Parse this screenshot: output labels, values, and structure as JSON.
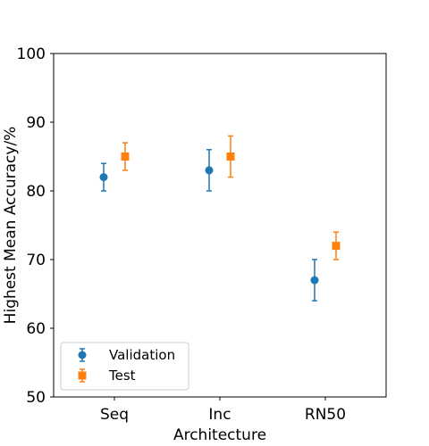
{
  "chart_data": {
    "type": "scatter",
    "title": "",
    "xlabel": "Architecture",
    "ylabel": "Highest Mean Accuracy/%",
    "categories": [
      "Seq",
      "Inc",
      "RN50"
    ],
    "ylim": [
      50,
      100
    ],
    "yticks": [
      50,
      60,
      70,
      80,
      90,
      100
    ],
    "grid": false,
    "legend_position": "lower-left",
    "series": [
      {
        "name": "Validation",
        "marker": "circle",
        "color": "#1f77b4",
        "values": [
          82,
          83,
          67
        ],
        "err_low": [
          80,
          80,
          64
        ],
        "err_high": [
          84,
          86,
          70
        ]
      },
      {
        "name": "Test",
        "marker": "square",
        "color": "#ff7f0e",
        "values": [
          85,
          85,
          72
        ],
        "err_low": [
          83,
          82,
          70
        ],
        "err_high": [
          87,
          88,
          74
        ]
      }
    ]
  }
}
